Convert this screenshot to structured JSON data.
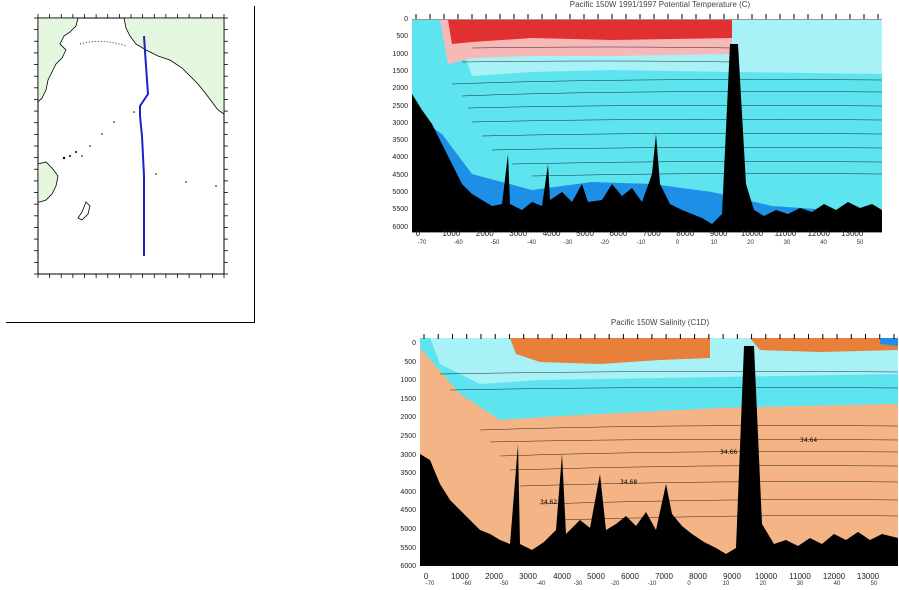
{
  "temperature_section": {
    "title": "Pacific 150W 1991/1997 Potential Temperature (C)",
    "depth_ticks": [
      "0",
      "500",
      "1000",
      "1500",
      "2000",
      "2500",
      "3000",
      "3500",
      "4000",
      "4500",
      "5000",
      "5500",
      "6000"
    ],
    "distance_ticks": [
      "0",
      "1000",
      "2000",
      "3000",
      "4000",
      "5000",
      "6000",
      "7000",
      "8000",
      "9000",
      "10000",
      "11000",
      "12000",
      "13000"
    ],
    "lat_ticks": [
      "-70",
      "-60",
      "-50",
      "-40",
      "-30",
      "-20",
      "-10",
      "0",
      "10",
      "20",
      "30",
      "40",
      "50"
    ]
  },
  "salinity_section": {
    "title": "Pacific 150W Salinity (C1D)",
    "depth_ticks": [
      "0",
      "500",
      "1000",
      "1500",
      "2000",
      "2500",
      "3000",
      "3500",
      "4000",
      "4500",
      "5000",
      "5500",
      "6000"
    ],
    "distance_ticks": [
      "0",
      "1000",
      "2000",
      "3000",
      "4000",
      "5000",
      "6000",
      "7000",
      "8000",
      "9000",
      "10000",
      "11000",
      "12000",
      "13000"
    ],
    "lat_ticks": [
      "-70",
      "-60",
      "-50",
      "-40",
      "-30",
      "-20",
      "-10",
      "0",
      "10",
      "20",
      "30",
      "40",
      "50"
    ],
    "contour_labels": [
      "34.64",
      "34.66",
      "34.68",
      "34.62"
    ]
  },
  "colors": {
    "land": "#e5f7df",
    "track": "#1a22c8",
    "warm_red": "#e03030",
    "cyan": "#5ee4ef",
    "deep_blue": "#1e8fe6",
    "salty_orange": "#f4b486",
    "seafloor": "#000000"
  }
}
